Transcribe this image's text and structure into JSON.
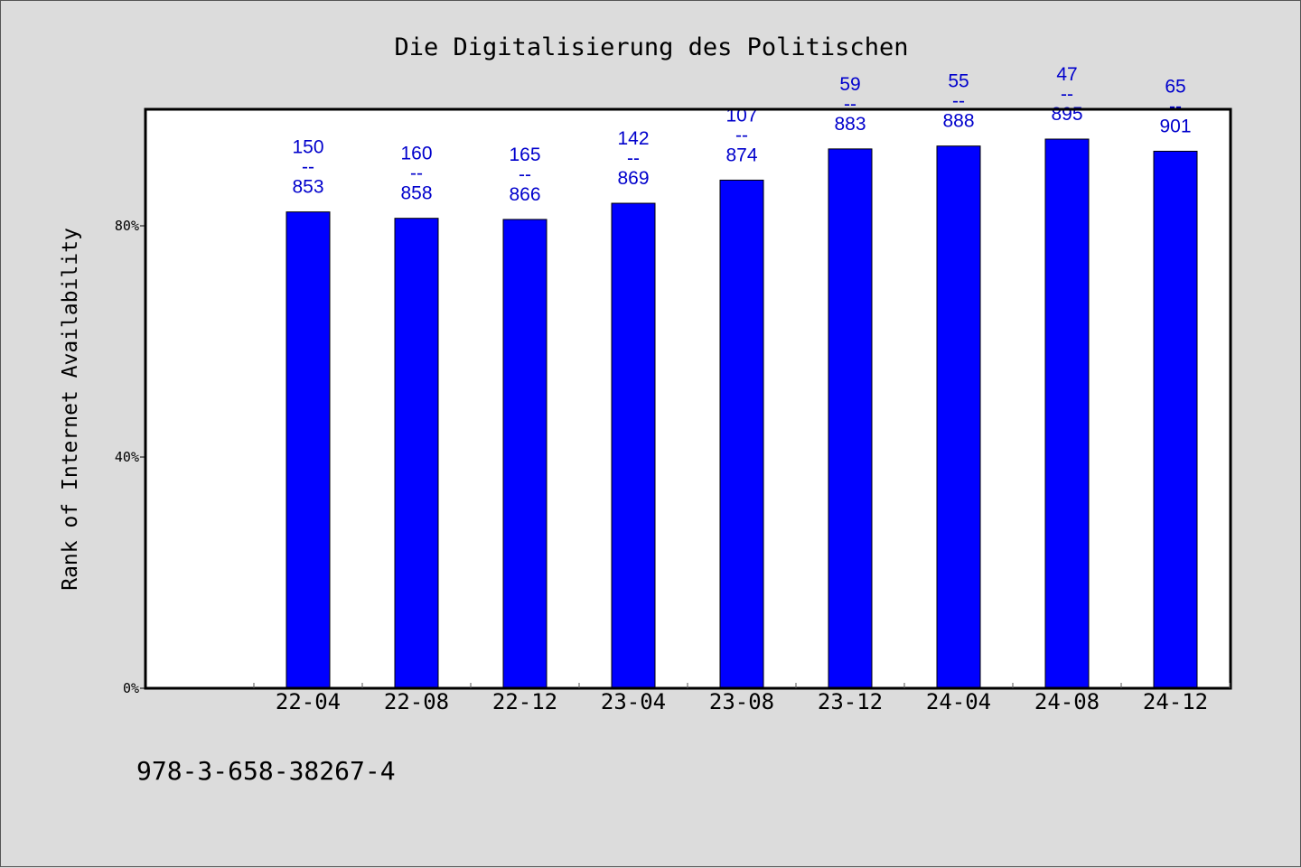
{
  "chart_data": {
    "type": "bar",
    "title": "Die Digitalisierung des Politischen",
    "xlabel": "",
    "ylabel": "Rank of Internet Availability",
    "categories": [
      "22-04",
      "22-08",
      "22-12",
      "23-04",
      "23-08",
      "23-12",
      "24-04",
      "24-08",
      "24-12"
    ],
    "values": [
      82.4,
      81.3,
      81.1,
      83.9,
      87.9,
      93.3,
      93.8,
      95.0,
      92.9
    ],
    "data_labels": [
      {
        "top": "150",
        "sep": "--",
        "bottom": "853"
      },
      {
        "top": "160",
        "sep": "--",
        "bottom": "858"
      },
      {
        "top": "165",
        "sep": "--",
        "bottom": "866"
      },
      {
        "top": "142",
        "sep": "--",
        "bottom": "869"
      },
      {
        "top": "107",
        "sep": "--",
        "bottom": "874"
      },
      {
        "top": "59",
        "sep": "--",
        "bottom": "883"
      },
      {
        "top": "55",
        "sep": "--",
        "bottom": "888"
      },
      {
        "top": "47",
        "sep": "--",
        "bottom": "895"
      },
      {
        "top": "65",
        "sep": "--",
        "bottom": "901"
      }
    ],
    "ylim": [
      0,
      100
    ],
    "yticks": [
      0,
      40,
      80
    ],
    "ytick_labels": [
      "0%",
      "40%",
      "80%"
    ],
    "grid": false,
    "legend": "none",
    "colors": {
      "bar": "#0000ff",
      "label": "#0000cc",
      "background": "#dcdcdc",
      "plot": "#ffffff"
    }
  },
  "footer": {
    "text": "978-3-658-38267-4"
  }
}
